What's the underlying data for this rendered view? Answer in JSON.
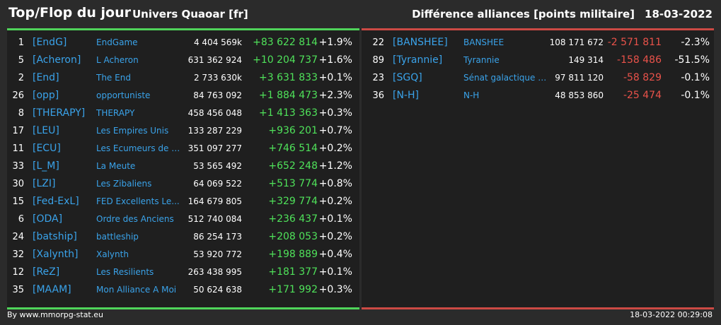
{
  "header": {
    "title": "Top/Flop du jour",
    "universe": "Univers Quaoar [fr]",
    "metric": "Différence alliances [points militaire]",
    "date": "18-03-2022"
  },
  "top": [
    {
      "rank": "1",
      "tag": "[EndG]",
      "name": "EndGame",
      "points": "4 404 569k",
      "diff": "+83 622 814",
      "pct": "+1.9%"
    },
    {
      "rank": "5",
      "tag": "[Acheron]",
      "name": "L Acheron",
      "points": "631 362 924",
      "diff": "+10 204 737",
      "pct": "+1.6%"
    },
    {
      "rank": "2",
      "tag": "[End]",
      "name": "The End",
      "points": "2 733 630k",
      "diff": "+3 631 833",
      "pct": "+0.1%"
    },
    {
      "rank": "26",
      "tag": "[opp]",
      "name": "opportuniste",
      "points": "84 763 092",
      "diff": "+1 884 473",
      "pct": "+2.3%"
    },
    {
      "rank": "8",
      "tag": "[THERAPY]",
      "name": "THERAPY",
      "points": "458 456 048",
      "diff": "+1 413 363",
      "pct": "+0.3%"
    },
    {
      "rank": "17",
      "tag": "[LEU]",
      "name": "Les Empires Unis",
      "points": "133 287 229",
      "diff": "+936 201",
      "pct": "+0.7%"
    },
    {
      "rank": "11",
      "tag": "[ECU]",
      "name": "Les Ecumeurs de G...",
      "points": "351 097 277",
      "diff": "+746 514",
      "pct": "+0.2%"
    },
    {
      "rank": "33",
      "tag": "[L_M]",
      "name": "La Meute",
      "points": "53 565 492",
      "diff": "+652 248",
      "pct": "+1.2%"
    },
    {
      "rank": "30",
      "tag": "[LZI]",
      "name": "Les Zibaliens",
      "points": "64 069 522",
      "diff": "+513 774",
      "pct": "+0.8%"
    },
    {
      "rank": "15",
      "tag": "[Fed-ExL]",
      "name": "FED Excellents Le...",
      "points": "164 679 805",
      "diff": "+329 774",
      "pct": "+0.2%"
    },
    {
      "rank": "6",
      "tag": "[ODA]",
      "name": "Ordre des Anciens",
      "points": "512 740 084",
      "diff": "+236 437",
      "pct": "+0.1%"
    },
    {
      "rank": "24",
      "tag": "[batship]",
      "name": "battleship",
      "points": "86 254 173",
      "diff": "+208 053",
      "pct": "+0.2%"
    },
    {
      "rank": "32",
      "tag": "[Xalynth]",
      "name": "Xalynth",
      "points": "53 920 772",
      "diff": "+198 889",
      "pct": "+0.4%"
    },
    {
      "rank": "12",
      "tag": "[ReZ]",
      "name": "Les Resilients",
      "points": "263 438 995",
      "diff": "+181 377",
      "pct": "+0.1%"
    },
    {
      "rank": "35",
      "tag": "[MAAM]",
      "name": "Mon Alliance A Moi",
      "points": "50 624 638",
      "diff": "+171 992",
      "pct": "+0.3%"
    }
  ],
  "flop": [
    {
      "rank": "22",
      "tag": "[BANSHEE]",
      "name": "BANSHEE",
      "points": "108 171 672",
      "diff": "-2 571 811",
      "pct": "-2.3%"
    },
    {
      "rank": "89",
      "tag": "[Tyrannie]",
      "name": "Tyrannie",
      "points": "149 314",
      "diff": "-158 486",
      "pct": "-51.5%"
    },
    {
      "rank": "23",
      "tag": "[SGQ]",
      "name": "Sénat galactique d...",
      "points": "97 811 120",
      "diff": "-58 829",
      "pct": "-0.1%"
    },
    {
      "rank": "36",
      "tag": "[N-H]",
      "name": "N-H",
      "points": "48 853 860",
      "diff": "-25 474",
      "pct": "-0.1%"
    }
  ],
  "colors": {
    "background": "#2b2b2b",
    "panel": "#1f1f1f",
    "positive": "#4fe25a",
    "negative": "#e9524a",
    "link": "#3aa3ea"
  },
  "footer": {
    "source": "By www.mmorpg-stat.eu",
    "timestamp": "18-03-2022 00:29:08"
  }
}
